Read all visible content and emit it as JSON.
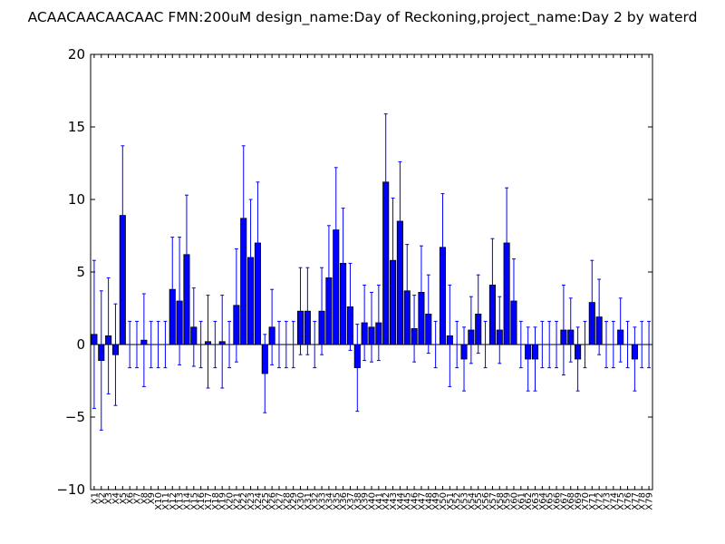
{
  "chart_data": {
    "type": "bar",
    "title": "ACAACAACAACAAC  FMN:200uM  design_name:Day of Reckoning,project_name:Day 2 by waterd",
    "xlabel": "",
    "ylabel": "",
    "ylim": [
      -10,
      20
    ],
    "yticks": [
      -10,
      -5,
      0,
      5,
      10,
      15,
      20
    ],
    "ytick_labels": [
      "−10",
      "−5",
      "0",
      "5",
      "10",
      "15",
      "20"
    ],
    "grid": false,
    "legend": "none",
    "colors": {
      "bar": "#0000ff",
      "bar_edge": "#000000",
      "error": "#0000ff",
      "axes": "#000000"
    },
    "categories": [
      "X1",
      "X2",
      "X3",
      "X4",
      "X5",
      "X6",
      "X7",
      "X8",
      "X9",
      "X10",
      "X11",
      "X12",
      "X13",
      "X14",
      "X15",
      "X16",
      "X17",
      "X18",
      "X19",
      "X20",
      "X21",
      "X22",
      "X23",
      "X24",
      "X25",
      "X26",
      "X27",
      "X28",
      "X29",
      "X30",
      "X31",
      "X32",
      "X33",
      "X34",
      "X35",
      "X36",
      "X37",
      "X38",
      "X39",
      "X40",
      "X41",
      "X42",
      "X43",
      "X44",
      "X45",
      "X46",
      "X47",
      "X48",
      "X49",
      "X50",
      "X51",
      "X52",
      "X53",
      "X54",
      "X55",
      "X56",
      "X57",
      "X58",
      "X59",
      "X60",
      "X61",
      "X62",
      "X63",
      "X64",
      "X65",
      "X66",
      "X67",
      "X68",
      "X69",
      "X70",
      "X71",
      "X72",
      "X73",
      "X74",
      "X75",
      "X76",
      "X77",
      "X78",
      "X79"
    ],
    "values": [
      0.7,
      -1.1,
      0.6,
      -0.7,
      8.9,
      0.0,
      0.0,
      0.3,
      0.0,
      0.0,
      0.0,
      3.8,
      3.0,
      6.2,
      1.2,
      0.0,
      0.2,
      0.0,
      0.2,
      0.0,
      2.7,
      8.7,
      6.0,
      7.0,
      -2.0,
      1.2,
      0.0,
      0.0,
      0.0,
      2.3,
      2.3,
      0.0,
      2.3,
      4.6,
      7.9,
      5.6,
      2.6,
      -1.6,
      1.5,
      1.2,
      1.5,
      11.2,
      5.8,
      8.5,
      3.7,
      1.1,
      3.6,
      2.1,
      0.0,
      6.7,
      0.6,
      0.0,
      -1.0,
      1.0,
      2.1,
      0.0,
      4.1,
      1.0,
      7.0,
      3.0,
      0.0,
      -1.0,
      -1.0,
      0.0,
      0.0,
      0.0,
      1.0,
      1.0,
      -1.0,
      0.0,
      2.9,
      1.9,
      0.0,
      0.0,
      1.0,
      0.0,
      -1.0,
      0.0,
      0.0
    ],
    "errors": [
      5.1,
      4.8,
      4.0,
      3.5,
      4.8,
      1.6,
      1.6,
      3.2,
      1.6,
      1.6,
      1.6,
      3.6,
      4.4,
      4.1,
      2.7,
      1.6,
      3.2,
      1.6,
      3.2,
      1.6,
      3.9,
      5.0,
      4.0,
      4.2,
      2.7,
      2.6,
      1.6,
      1.6,
      1.6,
      3.0,
      3.0,
      1.6,
      3.0,
      3.6,
      4.3,
      3.8,
      3.0,
      3.0,
      2.6,
      2.4,
      2.6,
      4.7,
      4.3,
      4.1,
      3.2,
      2.3,
      3.2,
      2.7,
      1.6,
      3.7,
      3.5,
      1.6,
      2.2,
      2.3,
      2.7,
      1.6,
      3.2,
      2.3,
      3.8,
      2.9,
      1.6,
      2.2,
      2.2,
      1.6,
      1.6,
      1.6,
      3.1,
      2.2,
      2.2,
      1.6,
      2.9,
      2.6,
      1.6,
      1.6,
      2.2,
      1.6,
      2.2,
      1.6,
      1.6
    ]
  }
}
